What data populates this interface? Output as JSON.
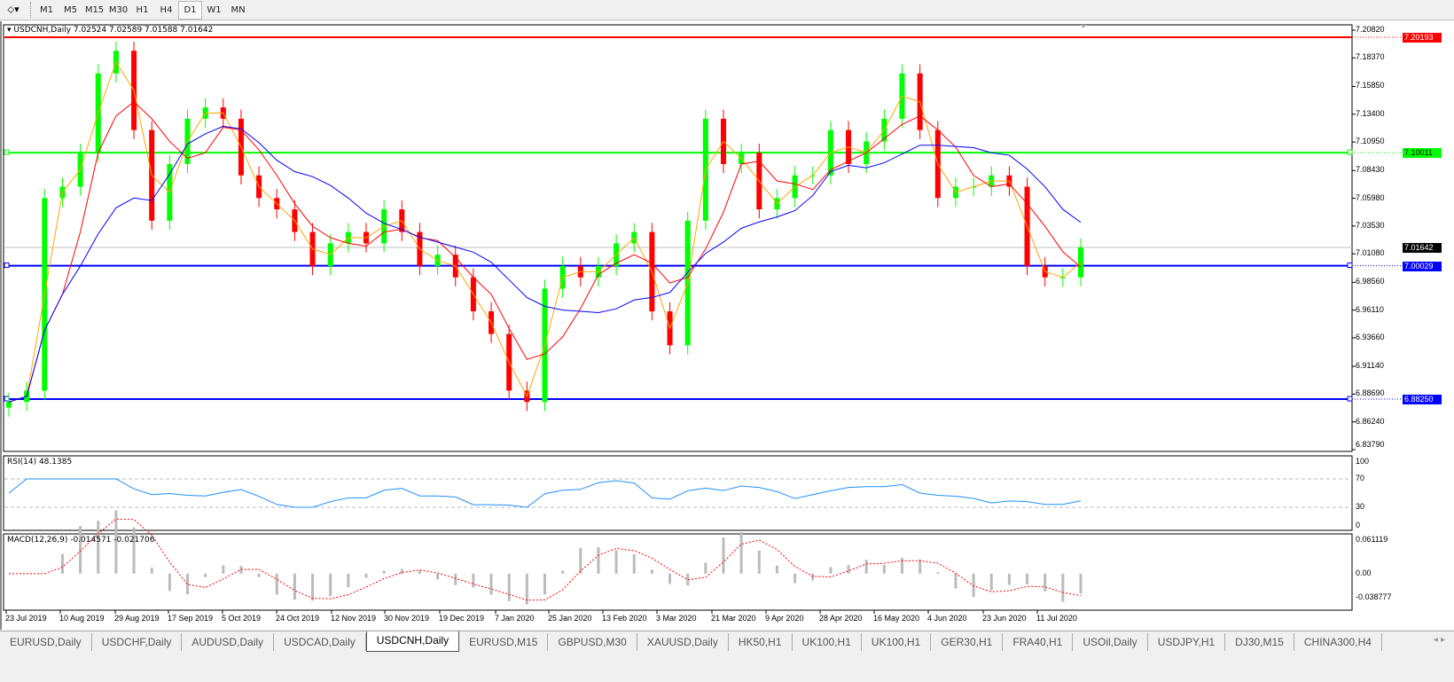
{
  "toolbar": {
    "timeframes": [
      "M1",
      "M5",
      "M15",
      "M30",
      "H1",
      "H4",
      "D1",
      "W1",
      "MN"
    ],
    "active": "D1"
  },
  "header": {
    "symbol_info": "USDCNH,Daily  7.02524 7.02589 7.01588 7.01642"
  },
  "price_axis": [
    "7.20820",
    "7.18370",
    "7.15850",
    "7.13400",
    "7.10950",
    "7.08430",
    "7.05980",
    "7.03530",
    "7.01080",
    "6.98560",
    "6.96110",
    "6.93660",
    "6.91140",
    "6.88690",
    "6.86240",
    "6.83790"
  ],
  "hlines": [
    {
      "label": "7.20193",
      "value": 7.20193,
      "color": "#ff0000"
    },
    {
      "label": "7.10011",
      "value": 7.10011,
      "color": "#00ff00"
    },
    {
      "label": "7.00029",
      "value": 7.00029,
      "color": "#0000ff"
    },
    {
      "label": "6.88250",
      "value": 6.8825,
      "color": "#0000ff"
    }
  ],
  "current_price": {
    "label": "7.01642",
    "value": 7.01642
  },
  "rsi": {
    "label": "RSI(14) 48.1385",
    "levels": [
      "100",
      "70",
      "30",
      "0"
    ]
  },
  "macd": {
    "label": "MACD(12,26,9) -0.014571 -0.021706",
    "levels": [
      "0.061119",
      "0.00",
      "-0.038777"
    ]
  },
  "date_axis": [
    "23 Jul 2019",
    "10 Aug 2019",
    "29 Aug 2019",
    "17 Sep 2019",
    "5 Oct 2019",
    "24 Oct 2019",
    "12 Nov 2019",
    "30 Nov 2019",
    "19 Dec 2019",
    "7 Jan 2020",
    "25 Jan 2020",
    "13 Feb 2020",
    "3 Mar 2020",
    "21 Mar 2020",
    "9 Apr 2020",
    "28 Apr 2020",
    "16 May 2020",
    "4 Jun 2020",
    "23 Jun 2020",
    "11 Jul 2020"
  ],
  "tabs": [
    "EURUSD,Daily",
    "USDCHF,Daily",
    "AUDUSD,Daily",
    "USDCAD,Daily",
    "USDCNH,Daily",
    "EURUSD,M15",
    "GBPUSD,M30",
    "XAUUSD,Daily",
    "HK50,H1",
    "UK100,H1",
    "UK100,H1",
    "GER30,H1",
    "FRA40,H1",
    "USOil,Daily",
    "USDJPY,H1",
    "DJ30,M15",
    "CHINA300,H4"
  ],
  "active_tab": "USDCNH,Daily",
  "colors": {
    "bull": "#00ff00",
    "bear": "#ff0000",
    "ma_fast": "#ffa500",
    "ma_mid": "#ff0000",
    "ma_slow": "#0000ff",
    "rsi": "#1e90ff",
    "macd_signal": "#ff0000"
  },
  "chart_data": {
    "type": "candlestick",
    "symbol": "USDCNH",
    "timeframe": "Daily",
    "ylim": [
      6.8379,
      7.2082
    ],
    "x_range": [
      "23 Jul 2019",
      "11 Jul 2020"
    ],
    "closes": [
      6.88,
      6.89,
      7.06,
      7.07,
      7.1,
      7.17,
      7.19,
      7.12,
      7.04,
      7.09,
      7.13,
      7.14,
      7.13,
      7.08,
      7.06,
      7.05,
      7.03,
      7.0,
      7.02,
      7.03,
      7.02,
      7.05,
      7.03,
      7.0,
      7.01,
      6.99,
      6.96,
      6.94,
      6.89,
      6.88,
      6.98,
      7.0,
      6.99,
      7.0,
      7.02,
      7.03,
      6.96,
      6.93,
      7.04,
      7.13,
      7.09,
      7.1,
      7.05,
      7.06,
      7.08,
      7.08,
      7.12,
      7.09,
      7.11,
      7.13,
      7.17,
      7.12,
      7.06,
      7.07,
      7.07,
      7.08,
      7.07,
      7.0,
      6.99,
      6.99,
      7.01642
    ]
  }
}
